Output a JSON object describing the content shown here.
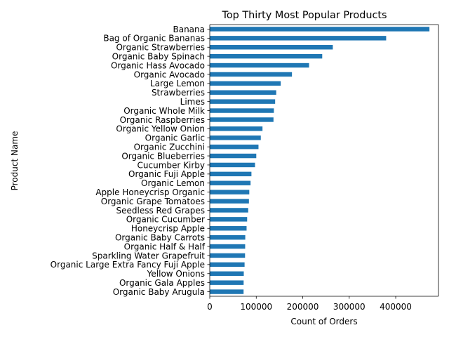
{
  "chart_data": {
    "type": "bar",
    "orientation": "horizontal",
    "title": "Top Thirty Most Popular Products",
    "xlabel": "Count of Orders",
    "ylabel": "Product Name",
    "xlim": [
      0,
      492000
    ],
    "xticks": [
      0,
      100000,
      200000,
      300000,
      400000
    ],
    "grid": false,
    "bar_color": "#1f77b4",
    "categories": [
      "Banana",
      "Bag of Organic Bananas",
      "Organic Strawberries",
      "Organic Baby Spinach",
      "Organic Hass Avocado",
      "Organic Avocado",
      "Large Lemon",
      "Strawberries",
      "Limes",
      "Organic Whole Milk",
      "Organic Raspberries",
      "Organic Yellow Onion",
      "Organic Garlic",
      "Organic Zucchini",
      "Organic Blueberries",
      "Cucumber Kirby",
      "Organic Fuji Apple",
      "Organic Lemon",
      "Apple Honeycrisp Organic",
      "Organic Grape Tomatoes",
      "Seedless Red Grapes",
      "Organic Cucumber",
      "Honeycrisp Apple",
      "Organic Baby Carrots",
      "Organic Half & Half",
      "Sparkling Water Grapefruit",
      "Organic Large Extra Fancy Fuji Apple",
      "Yellow Onions",
      "Organic Gala Apples",
      "Organic Baby Arugula"
    ],
    "values": [
      472565,
      379450,
      264683,
      241921,
      213584,
      176815,
      152657,
      142951,
      140627,
      137905,
      137057,
      113426,
      109778,
      104823,
      100060,
      97315,
      89632,
      87746,
      85020,
      84255,
      82689,
      80392,
      79193,
      76360,
      76139,
      75886,
      74884,
      73167,
      72846,
      72712
    ]
  }
}
